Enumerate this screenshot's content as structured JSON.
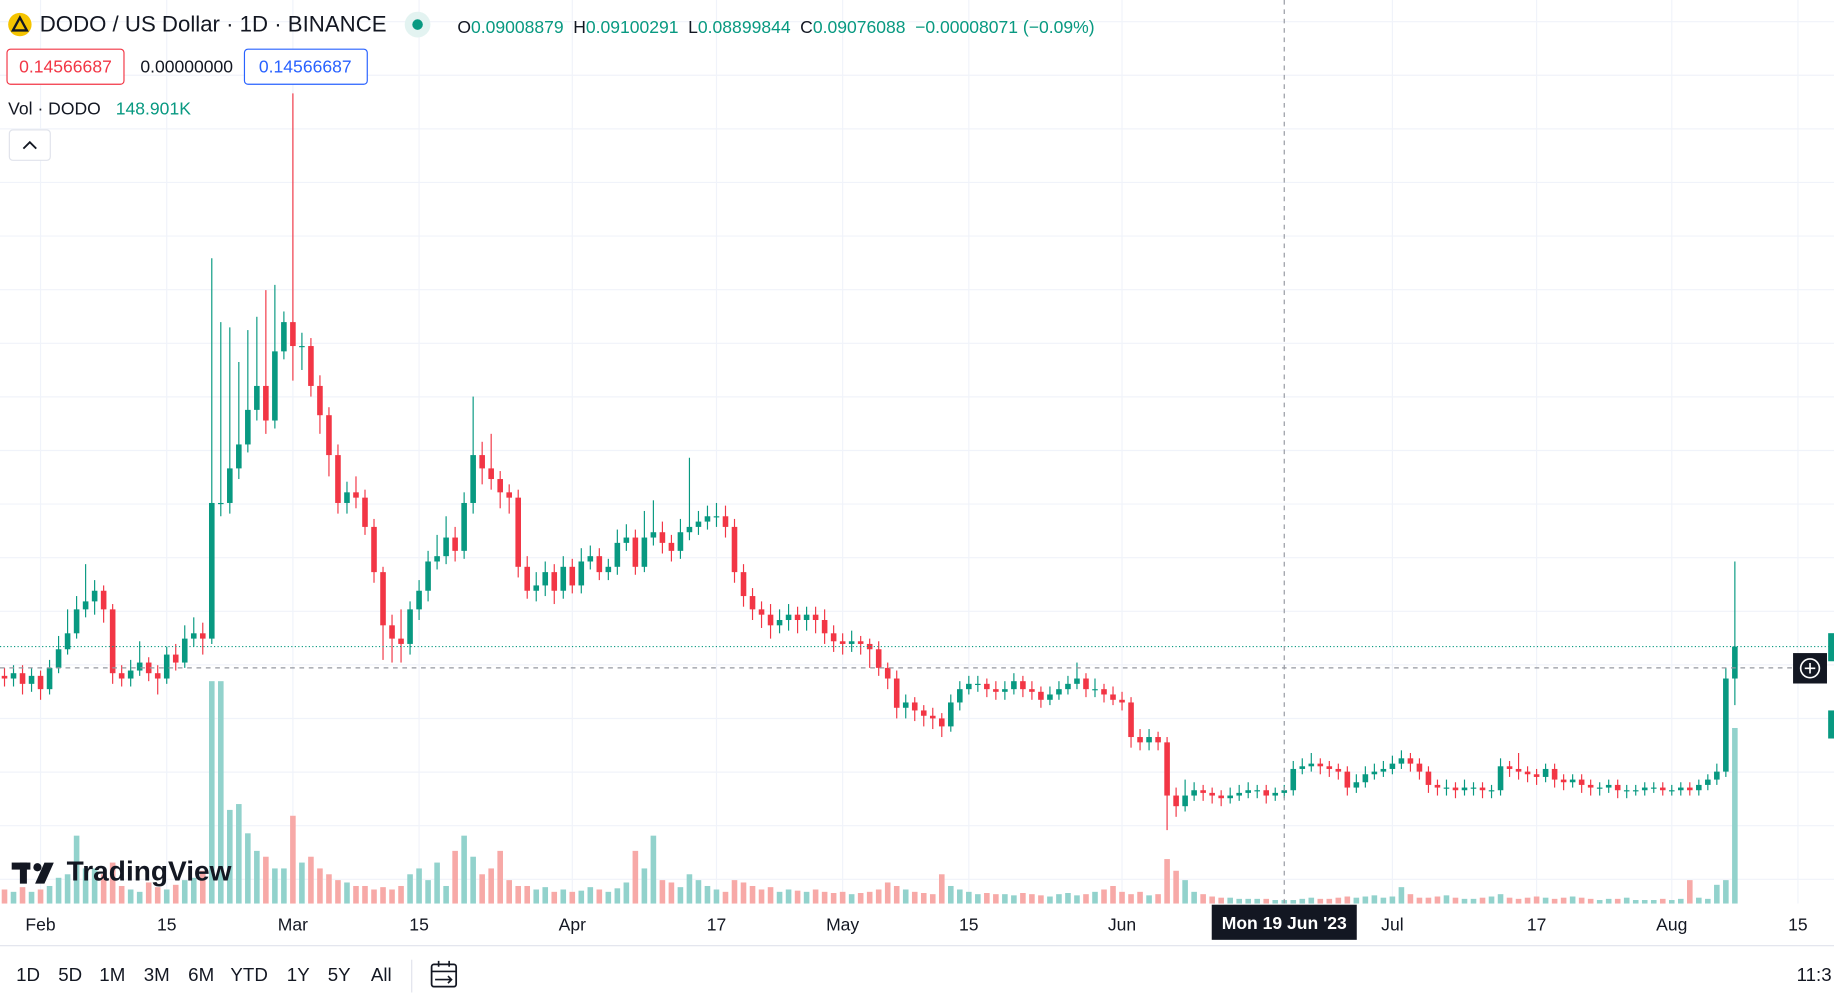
{
  "header": {
    "title": "DODO / US Dollar · 1D · BINANCE",
    "ohlc": [
      {
        "label": "O",
        "value": "0.09008879"
      },
      {
        "label": "H",
        "value": "0.09100291"
      },
      {
        "label": "L",
        "value": "0.08899844"
      },
      {
        "label": "C",
        "value": "0.09076088"
      }
    ],
    "change": "−0.00008071 (−0.09%)",
    "indicators": [
      "0.14566687",
      "0.00000000",
      "0.14566687"
    ],
    "volume_label": "Vol · DODO",
    "volume_value": "148.901K"
  },
  "logo": "TradingView",
  "toolbar": {
    "ranges": [
      "1D",
      "5D",
      "1M",
      "3M",
      "6M",
      "YTD",
      "1Y",
      "5Y",
      "All"
    ],
    "time": "11:3"
  },
  "chart_data": {
    "type": "candlestick",
    "up_color": "#089981",
    "down_color": "#f23645",
    "volume_up_color": "#92d2cc",
    "volume_down_color": "#f7a9a7",
    "xlim": [
      -0.5,
      203
    ],
    "ylim": [
      0.0494,
      0.3891
    ],
    "volume_ylim": [
      0,
      38600
    ],
    "xticks": [
      {
        "value": 4,
        "label": "Feb"
      },
      {
        "value": 18,
        "label": "15"
      },
      {
        "value": 32,
        "label": "Mar"
      },
      {
        "value": 46,
        "label": "15"
      },
      {
        "value": 63,
        "label": "Apr"
      },
      {
        "value": 79,
        "label": "17"
      },
      {
        "value": 93,
        "label": "May"
      },
      {
        "value": 107,
        "label": "15"
      },
      {
        "value": 124,
        "label": "Jun"
      },
      {
        "value": 154,
        "label": "Jul"
      },
      {
        "value": 170,
        "label": "17"
      },
      {
        "value": 185,
        "label": "Aug"
      },
      {
        "value": 199,
        "label": "15"
      }
    ],
    "crosshair": {
      "x": 142,
      "label": "Mon 19 Jun '23",
      "price": 0.138
    },
    "open": [
      0.135,
      0.134,
      0.136,
      0.132,
      0.135,
      0.13,
      0.138,
      0.145,
      0.151,
      0.16,
      0.163,
      0.167,
      0.16,
      0.136,
      0.134,
      0.137,
      0.14,
      0.136,
      0.134,
      0.143,
      0.14,
      0.149,
      0.151,
      0.149,
      0.2,
      0.2,
      0.213,
      0.222,
      0.235,
      0.244,
      0.231,
      0.257,
      0.268,
      0.259,
      0.259,
      0.244,
      0.233,
      0.218,
      0.2,
      0.204,
      0.202,
      0.191,
      0.174,
      0.154,
      0.149,
      0.147,
      0.16,
      0.167,
      0.178,
      0.18,
      0.187,
      0.182,
      0.2,
      0.218,
      0.213,
      0.209,
      0.204,
      0.202,
      0.176,
      0.167,
      0.169,
      0.174,
      0.167,
      0.176,
      0.169,
      0.178,
      0.18,
      0.174,
      0.176,
      0.185,
      0.187,
      0.176,
      0.187,
      0.189,
      0.185,
      0.182,
      0.189,
      0.191,
      0.193,
      0.195,
      0.195,
      0.191,
      0.174,
      0.165,
      0.16,
      0.158,
      0.154,
      0.156,
      0.158,
      0.156,
      0.158,
      0.156,
      0.151,
      0.148,
      0.147,
      0.148,
      0.147,
      0.145,
      0.138,
      0.134,
      0.123,
      0.125,
      0.122,
      0.12,
      0.119,
      0.116,
      0.125,
      0.13,
      0.132,
      0.132,
      0.13,
      0.129,
      0.13,
      0.133,
      0.13,
      0.129,
      0.126,
      0.128,
      0.13,
      0.132,
      0.134,
      0.13,
      0.13,
      0.128,
      0.126,
      0.125,
      0.112,
      0.11,
      0.112,
      0.11,
      0.09,
      0.086,
      0.09,
      0.092,
      0.091,
      0.09,
      0.089,
      0.09,
      0.091,
      0.092,
      0.092,
      0.09,
      0.091,
      0.092,
      0.1,
      0.101,
      0.102,
      0.101,
      0.1,
      0.099,
      0.093,
      0.095,
      0.098,
      0.099,
      0.1,
      0.102,
      0.104,
      0.102,
      0.099,
      0.094,
      0.093,
      0.093,
      0.092,
      0.093,
      0.093,
      0.092,
      0.092,
      0.101,
      0.1,
      0.099,
      0.098,
      0.097,
      0.1,
      0.096,
      0.095,
      0.096,
      0.094,
      0.093,
      0.093,
      0.094,
      0.092,
      0.092,
      0.092,
      0.093,
      0.093,
      0.092,
      0.092,
      0.093,
      0.092,
      0.094,
      0.096,
      0.099,
      0.134
    ],
    "high": [
      0.138,
      0.139,
      0.139,
      0.138,
      0.137,
      0.141,
      0.15,
      0.16,
      0.165,
      0.177,
      0.171,
      0.169,
      0.162,
      0.139,
      0.141,
      0.148,
      0.142,
      0.139,
      0.146,
      0.147,
      0.154,
      0.157,
      0.155,
      0.292,
      0.268,
      0.266,
      0.253,
      0.265,
      0.27,
      0.28,
      0.282,
      0.272,
      0.354,
      0.264,
      0.262,
      0.248,
      0.236,
      0.222,
      0.208,
      0.21,
      0.205,
      0.194,
      0.176,
      0.158,
      0.16,
      0.163,
      0.171,
      0.182,
      0.188,
      0.195,
      0.191,
      0.204,
      0.24,
      0.223,
      0.226,
      0.212,
      0.207,
      0.205,
      0.18,
      0.174,
      0.178,
      0.177,
      0.18,
      0.179,
      0.183,
      0.184,
      0.183,
      0.179,
      0.19,
      0.192,
      0.19,
      0.197,
      0.201,
      0.193,
      0.188,
      0.194,
      0.217,
      0.197,
      0.199,
      0.2,
      0.199,
      0.194,
      0.177,
      0.168,
      0.163,
      0.162,
      0.16,
      0.162,
      0.161,
      0.161,
      0.161,
      0.16,
      0.154,
      0.151,
      0.152,
      0.15,
      0.149,
      0.148,
      0.14,
      0.137,
      0.128,
      0.127,
      0.124,
      0.123,
      0.121,
      0.128,
      0.133,
      0.135,
      0.135,
      0.134,
      0.133,
      0.133,
      0.136,
      0.135,
      0.133,
      0.131,
      0.131,
      0.133,
      0.135,
      0.14,
      0.136,
      0.134,
      0.132,
      0.131,
      0.129,
      0.127,
      0.115,
      0.115,
      0.114,
      0.112,
      0.093,
      0.096,
      0.095,
      0.094,
      0.093,
      0.092,
      0.093,
      0.094,
      0.095,
      0.094,
      0.094,
      0.093,
      0.094,
      0.103,
      0.104,
      0.106,
      0.104,
      0.103,
      0.102,
      0.101,
      0.098,
      0.101,
      0.102,
      0.103,
      0.105,
      0.107,
      0.106,
      0.104,
      0.101,
      0.096,
      0.096,
      0.095,
      0.096,
      0.095,
      0.095,
      0.094,
      0.104,
      0.103,
      0.106,
      0.101,
      0.1,
      0.102,
      0.102,
      0.098,
      0.098,
      0.098,
      0.096,
      0.095,
      0.096,
      0.096,
      0.094,
      0.094,
      0.095,
      0.095,
      0.095,
      0.094,
      0.095,
      0.095,
      0.096,
      0.098,
      0.102,
      0.138,
      0.178
    ],
    "low": [
      0.131,
      0.131,
      0.128,
      0.129,
      0.126,
      0.128,
      0.136,
      0.143,
      0.149,
      0.157,
      0.158,
      0.155,
      0.132,
      0.131,
      0.131,
      0.135,
      0.133,
      0.128,
      0.132,
      0.137,
      0.138,
      0.146,
      0.143,
      0.147,
      0.195,
      0.196,
      0.209,
      0.219,
      0.231,
      0.226,
      0.228,
      0.254,
      0.246,
      0.25,
      0.24,
      0.226,
      0.21,
      0.196,
      0.196,
      0.198,
      0.188,
      0.17,
      0.141,
      0.14,
      0.14,
      0.143,
      0.156,
      0.163,
      0.175,
      0.177,
      0.178,
      0.179,
      0.196,
      0.207,
      0.205,
      0.198,
      0.196,
      0.172,
      0.164,
      0.163,
      0.165,
      0.162,
      0.164,
      0.166,
      0.166,
      0.175,
      0.171,
      0.171,
      0.173,
      0.182,
      0.173,
      0.174,
      0.184,
      0.181,
      0.178,
      0.179,
      0.186,
      0.188,
      0.19,
      0.191,
      0.187,
      0.17,
      0.161,
      0.156,
      0.153,
      0.149,
      0.151,
      0.152,
      0.151,
      0.152,
      0.151,
      0.147,
      0.144,
      0.143,
      0.144,
      0.143,
      0.138,
      0.135,
      0.13,
      0.119,
      0.119,
      0.118,
      0.116,
      0.115,
      0.112,
      0.114,
      0.122,
      0.128,
      0.129,
      0.127,
      0.126,
      0.126,
      0.128,
      0.127,
      0.126,
      0.123,
      0.124,
      0.126,
      0.128,
      0.13,
      0.127,
      0.127,
      0.125,
      0.124,
      0.122,
      0.108,
      0.107,
      0.107,
      0.107,
      0.077,
      0.082,
      0.084,
      0.088,
      0.088,
      0.087,
      0.086,
      0.087,
      0.088,
      0.089,
      0.089,
      0.087,
      0.088,
      0.089,
      0.09,
      0.098,
      0.099,
      0.098,
      0.097,
      0.096,
      0.09,
      0.091,
      0.093,
      0.096,
      0.097,
      0.098,
      0.1,
      0.099,
      0.096,
      0.091,
      0.09,
      0.09,
      0.089,
      0.09,
      0.09,
      0.089,
      0.089,
      0.09,
      0.097,
      0.096,
      0.095,
      0.094,
      0.095,
      0.093,
      0.092,
      0.093,
      0.091,
      0.09,
      0.09,
      0.091,
      0.089,
      0.089,
      0.09,
      0.09,
      0.091,
      0.09,
      0.09,
      0.09,
      0.09,
      0.09,
      0.092,
      0.094,
      0.097,
      0.124
    ],
    "close": [
      0.134,
      0.136,
      0.132,
      0.135,
      0.13,
      0.138,
      0.145,
      0.151,
      0.16,
      0.163,
      0.167,
      0.16,
      0.136,
      0.134,
      0.137,
      0.14,
      0.136,
      0.134,
      0.143,
      0.14,
      0.149,
      0.151,
      0.149,
      0.2,
      0.2,
      0.213,
      0.222,
      0.235,
      0.244,
      0.231,
      0.257,
      0.268,
      0.259,
      0.259,
      0.244,
      0.233,
      0.218,
      0.2,
      0.204,
      0.202,
      0.191,
      0.174,
      0.154,
      0.149,
      0.147,
      0.16,
      0.167,
      0.178,
      0.18,
      0.187,
      0.182,
      0.2,
      0.218,
      0.213,
      0.209,
      0.204,
      0.202,
      0.176,
      0.167,
      0.169,
      0.174,
      0.167,
      0.176,
      0.169,
      0.178,
      0.18,
      0.174,
      0.176,
      0.185,
      0.187,
      0.176,
      0.187,
      0.189,
      0.185,
      0.182,
      0.189,
      0.191,
      0.193,
      0.195,
      0.195,
      0.191,
      0.174,
      0.165,
      0.16,
      0.158,
      0.154,
      0.156,
      0.158,
      0.156,
      0.158,
      0.156,
      0.151,
      0.148,
      0.147,
      0.148,
      0.147,
      0.145,
      0.138,
      0.134,
      0.123,
      0.125,
      0.122,
      0.12,
      0.119,
      0.116,
      0.125,
      0.13,
      0.132,
      0.132,
      0.13,
      0.129,
      0.13,
      0.133,
      0.13,
      0.129,
      0.126,
      0.128,
      0.13,
      0.132,
      0.134,
      0.13,
      0.13,
      0.128,
      0.126,
      0.125,
      0.112,
      0.11,
      0.112,
      0.11,
      0.09,
      0.086,
      0.09,
      0.092,
      0.091,
      0.09,
      0.089,
      0.09,
      0.091,
      0.092,
      0.092,
      0.09,
      0.091,
      0.092,
      0.1,
      0.101,
      0.102,
      0.101,
      0.1,
      0.099,
      0.093,
      0.095,
      0.098,
      0.099,
      0.1,
      0.102,
      0.104,
      0.102,
      0.099,
      0.094,
      0.093,
      0.093,
      0.092,
      0.093,
      0.093,
      0.092,
      0.092,
      0.101,
      0.1,
      0.099,
      0.098,
      0.097,
      0.1,
      0.096,
      0.095,
      0.096,
      0.094,
      0.093,
      0.093,
      0.094,
      0.092,
      0.092,
      0.092,
      0.093,
      0.093,
      0.092,
      0.092,
      0.093,
      0.092,
      0.094,
      0.096,
      0.099,
      0.134,
      0.146
    ],
    "volume": [
      600,
      500,
      700,
      500,
      600,
      750,
      1100,
      1250,
      2900,
      1500,
      1500,
      1250,
      1750,
      750,
      600,
      500,
      900,
      700,
      600,
      800,
      1000,
      1100,
      1400,
      9500,
      9500,
      4000,
      4250,
      3000,
      2250,
      2000,
      1500,
      1500,
      3750,
      1750,
      2000,
      1500,
      1250,
      1000,
      900,
      750,
      750,
      600,
      700,
      600,
      750,
      1250,
      1500,
      1000,
      1750,
      750,
      2250,
      2900,
      2000,
      1250,
      1500,
      2250,
      1000,
      750,
      750,
      600,
      700,
      500,
      600,
      500,
      550,
      700,
      600,
      500,
      650,
      900,
      2250,
      1500,
      2900,
      1000,
      900,
      700,
      1250,
      1000,
      750,
      600,
      500,
      1000,
      900,
      750,
      600,
      700,
      500,
      600,
      550,
      500,
      600,
      500,
      450,
      500,
      400,
      450,
      500,
      600,
      900,
      750,
      600,
      500,
      450,
      400,
      1250,
      750,
      600,
      500,
      400,
      450,
      400,
      400,
      350,
      450,
      400,
      350,
      300,
      400,
      450,
      350,
      400,
      500,
      600,
      750,
      500,
      400,
      500,
      350,
      400,
      1900,
      1400,
      1000,
      500,
      400,
      300,
      250,
      250,
      200,
      200,
      200,
      200,
      150,
      148.901,
      150,
      200,
      250,
      200,
      200,
      250,
      300,
      250,
      300,
      350,
      250,
      300,
      700,
      400,
      250,
      250,
      300,
      350,
      250,
      200,
      200,
      250,
      300,
      400,
      250,
      200,
      250,
      300,
      250,
      200,
      250,
      300,
      250,
      200,
      150,
      200,
      200,
      250,
      150,
      150,
      150,
      200,
      150,
      200,
      1000,
      250,
      200,
      800,
      1000,
      7500
    ]
  }
}
